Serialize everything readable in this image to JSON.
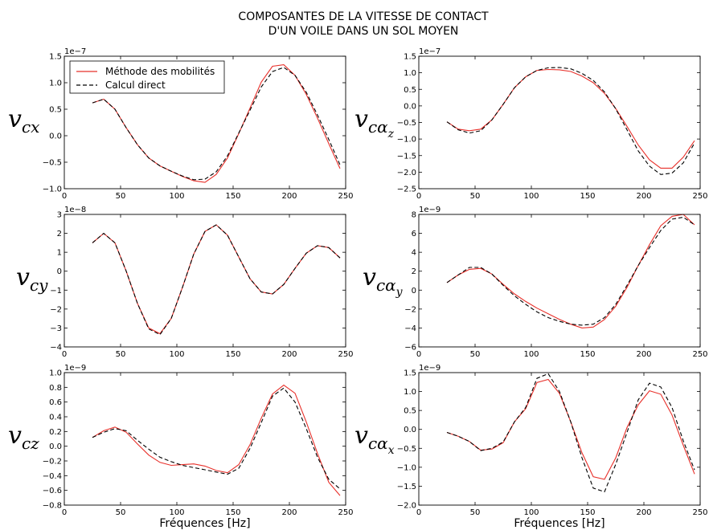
{
  "figure": {
    "title_line1": "COMPOSANTES DE LA VITESSE DE CONTACT",
    "title_line2": "D'UN VOILE DANS UN SOL MOYEN",
    "xlabel": "Fréquences [Hz]",
    "legend": [
      "Méthode des mobilités",
      "Calcul direct"
    ],
    "colors": {
      "mobilites": "#e8302a",
      "direct": "#000000"
    }
  },
  "chart_data": [
    {
      "type": "line",
      "ylabel": "v",
      "ylabel_sub": "cx",
      "ylabel_subsub": "",
      "multiplier": "1e−7",
      "legend_placement": "top-left",
      "xlim": [
        0,
        250
      ],
      "ylim": [
        -1.0,
        1.5
      ],
      "xticks": [
        0,
        50,
        100,
        150,
        200,
        250
      ],
      "xtick_labels": [
        "0",
        "50",
        "100",
        "150",
        "200",
        "250"
      ],
      "yticks": [
        -1.0,
        -0.5,
        0.0,
        0.5,
        1.0,
        1.5
      ],
      "ytick_labels": [
        "−1.0",
        "−0.5",
        "0.0",
        "0.5",
        "1.0",
        "1.5"
      ],
      "x": [
        25,
        35,
        45,
        55,
        65,
        75,
        85,
        95,
        105,
        115,
        125,
        135,
        145,
        155,
        165,
        175,
        185,
        195,
        205,
        215,
        225,
        235,
        245
      ],
      "series": [
        {
          "name": "Méthode des mobilités",
          "values": [
            0.62,
            0.69,
            0.5,
            0.15,
            -0.17,
            -0.42,
            -0.57,
            -0.67,
            -0.77,
            -0.85,
            -0.88,
            -0.73,
            -0.42,
            0.04,
            0.52,
            1.01,
            1.31,
            1.34,
            1.14,
            0.78,
            0.33,
            -0.15,
            -0.62
          ]
        },
        {
          "name": "Calcul direct",
          "values": [
            0.62,
            0.69,
            0.5,
            0.15,
            -0.17,
            -0.42,
            -0.57,
            -0.67,
            -0.76,
            -0.83,
            -0.82,
            -0.68,
            -0.38,
            0.05,
            0.48,
            0.92,
            1.21,
            1.29,
            1.14,
            0.82,
            0.39,
            -0.07,
            -0.55
          ]
        }
      ]
    },
    {
      "type": "line",
      "ylabel": "v",
      "ylabel_sub": "cα",
      "ylabel_subsub": "z",
      "multiplier": "1e−7",
      "xlim": [
        0,
        250
      ],
      "ylim": [
        -2.5,
        1.5
      ],
      "xticks": [
        0,
        50,
        100,
        150,
        200,
        250
      ],
      "xtick_labels": [
        "0",
        "50",
        "100",
        "150",
        "200",
        "250"
      ],
      "yticks": [
        -2.5,
        -2.0,
        -1.5,
        -1.0,
        -0.5,
        0.0,
        0.5,
        1.0,
        1.5
      ],
      "ytick_labels": [
        "−2.5",
        "−2.0",
        "−1.5",
        "−1.0",
        "−0.5",
        "0.0",
        "0.5",
        "1.0",
        "1.5"
      ],
      "x": [
        25,
        35,
        45,
        55,
        65,
        75,
        85,
        95,
        105,
        115,
        125,
        135,
        145,
        155,
        165,
        175,
        185,
        195,
        205,
        215,
        225,
        235,
        245
      ],
      "series": [
        {
          "name": "Méthode des mobilités",
          "values": [
            -0.48,
            -0.7,
            -0.75,
            -0.7,
            -0.42,
            0.05,
            0.55,
            0.88,
            1.07,
            1.1,
            1.09,
            1.04,
            0.9,
            0.7,
            0.38,
            -0.08,
            -0.62,
            -1.18,
            -1.63,
            -1.88,
            -1.88,
            -1.55,
            -1.05
          ]
        },
        {
          "name": "Calcul direct",
          "values": [
            -0.48,
            -0.72,
            -0.82,
            -0.75,
            -0.42,
            0.05,
            0.55,
            0.88,
            1.07,
            1.15,
            1.16,
            1.12,
            0.98,
            0.77,
            0.42,
            -0.09,
            -0.72,
            -1.36,
            -1.82,
            -2.07,
            -2.03,
            -1.72,
            -1.12
          ]
        }
      ]
    },
    {
      "type": "line",
      "ylabel": "v",
      "ylabel_sub": "cy",
      "ylabel_subsub": "",
      "multiplier": "1e−8",
      "xlim": [
        0,
        250
      ],
      "ylim": [
        -4,
        3
      ],
      "xticks": [
        0,
        50,
        100,
        150,
        200,
        250
      ],
      "xtick_labels": [
        "0",
        "50",
        "100",
        "150",
        "200",
        "250"
      ],
      "yticks": [
        -4,
        -3,
        -2,
        -1,
        0,
        1,
        2,
        3
      ],
      "ytick_labels": [
        "−4",
        "−3",
        "−2",
        "−1",
        "0",
        "1",
        "2",
        "3"
      ],
      "x": [
        25,
        35,
        45,
        55,
        65,
        75,
        85,
        95,
        105,
        115,
        125,
        135,
        145,
        155,
        165,
        175,
        185,
        195,
        205,
        215,
        225,
        235,
        245
      ],
      "series": [
        {
          "name": "Méthode des mobilités",
          "values": [
            1.5,
            2.0,
            1.5,
            0.0,
            -1.7,
            -3.0,
            -3.3,
            -2.5,
            -0.85,
            0.9,
            2.1,
            2.45,
            1.9,
            0.75,
            -0.4,
            -1.1,
            -1.2,
            -0.7,
            0.15,
            0.95,
            1.35,
            1.25,
            0.7
          ]
        },
        {
          "name": "Calcul direct",
          "values": [
            1.5,
            2.0,
            1.5,
            0.0,
            -1.7,
            -3.05,
            -3.35,
            -2.5,
            -0.85,
            0.9,
            2.1,
            2.45,
            1.9,
            0.75,
            -0.4,
            -1.1,
            -1.2,
            -0.7,
            0.15,
            0.95,
            1.35,
            1.25,
            0.7
          ]
        }
      ]
    },
    {
      "type": "line",
      "ylabel": "v",
      "ylabel_sub": "cα",
      "ylabel_subsub": "y",
      "multiplier": "1e−9",
      "xlim": [
        0,
        250
      ],
      "ylim": [
        -6,
        8
      ],
      "xticks": [
        0,
        50,
        100,
        150,
        200,
        250
      ],
      "xtick_labels": [
        "0",
        "50",
        "100",
        "150",
        "200",
        "250"
      ],
      "yticks": [
        -6,
        -4,
        -2,
        0,
        2,
        4,
        6,
        8
      ],
      "ytick_labels": [
        "−6",
        "−4",
        "−2",
        "0",
        "2",
        "4",
        "6",
        "8"
      ],
      "x": [
        25,
        35,
        45,
        55,
        65,
        75,
        85,
        95,
        105,
        115,
        125,
        135,
        145,
        155,
        165,
        175,
        185,
        195,
        205,
        215,
        225,
        235,
        245
      ],
      "series": [
        {
          "name": "Méthode des mobilités",
          "values": [
            0.8,
            1.6,
            2.2,
            2.3,
            1.7,
            0.6,
            -0.4,
            -1.2,
            -1.9,
            -2.5,
            -3.1,
            -3.6,
            -4.0,
            -3.9,
            -3.1,
            -1.7,
            0.3,
            2.6,
            4.8,
            6.8,
            7.8,
            8.0,
            6.9
          ]
        },
        {
          "name": "Calcul direct",
          "values": [
            0.8,
            1.6,
            2.4,
            2.4,
            1.7,
            0.5,
            -0.6,
            -1.5,
            -2.3,
            -2.9,
            -3.3,
            -3.6,
            -3.7,
            -3.6,
            -2.9,
            -1.5,
            0.5,
            2.6,
            4.5,
            6.3,
            7.5,
            7.7,
            6.9
          ]
        }
      ]
    },
    {
      "type": "line",
      "ylabel": "v",
      "ylabel_sub": "cz",
      "ylabel_subsub": "",
      "multiplier": "1e−9",
      "xlim": [
        0,
        250
      ],
      "ylim": [
        -0.8,
        1.0
      ],
      "xticks": [
        0,
        50,
        100,
        150,
        200,
        250
      ],
      "xtick_labels": [
        "0",
        "50",
        "100",
        "150",
        "200",
        "250"
      ],
      "yticks": [
        -0.8,
        -0.6,
        -0.4,
        -0.2,
        0.0,
        0.2,
        0.4,
        0.6,
        0.8,
        1.0
      ],
      "ytick_labels": [
        "−0.8",
        "−0.6",
        "−0.4",
        "−0.2",
        "0.0",
        "0.2",
        "0.4",
        "0.6",
        "0.8",
        "1.0"
      ],
      "x": [
        25,
        35,
        45,
        55,
        65,
        75,
        85,
        95,
        105,
        115,
        125,
        135,
        145,
        155,
        165,
        175,
        185,
        195,
        205,
        215,
        225,
        235,
        245
      ],
      "series": [
        {
          "name": "Méthode des mobilités",
          "values": [
            0.12,
            0.21,
            0.26,
            0.19,
            0.03,
            -0.12,
            -0.22,
            -0.26,
            -0.25,
            -0.24,
            -0.27,
            -0.33,
            -0.36,
            -0.25,
            0.02,
            0.38,
            0.71,
            0.83,
            0.72,
            0.33,
            -0.1,
            -0.49,
            -0.67
          ]
        },
        {
          "name": "Calcul direct",
          "values": [
            0.12,
            0.19,
            0.24,
            0.21,
            0.08,
            -0.04,
            -0.15,
            -0.21,
            -0.26,
            -0.29,
            -0.32,
            -0.35,
            -0.38,
            -0.3,
            -0.03,
            0.32,
            0.68,
            0.79,
            0.6,
            0.24,
            -0.15,
            -0.45,
            -0.58
          ]
        }
      ]
    },
    {
      "type": "line",
      "ylabel": "v",
      "ylabel_sub": "cα",
      "ylabel_subsub": "x",
      "multiplier": "1e−9",
      "xlim": [
        0,
        250
      ],
      "ylim": [
        -2.0,
        1.5
      ],
      "xticks": [
        0,
        50,
        100,
        150,
        200,
        250
      ],
      "xtick_labels": [
        "0",
        "50",
        "100",
        "150",
        "200",
        "250"
      ],
      "yticks": [
        -2.0,
        -1.5,
        -1.0,
        -0.5,
        0.0,
        0.5,
        1.0,
        1.5
      ],
      "ytick_labels": [
        "−2.0",
        "−1.5",
        "−1.0",
        "−0.5",
        "0.0",
        "0.5",
        "1.0",
        "1.5"
      ],
      "x": [
        25,
        35,
        45,
        55,
        65,
        75,
        85,
        95,
        105,
        115,
        125,
        135,
        145,
        155,
        165,
        175,
        185,
        195,
        205,
        215,
        225,
        235,
        245
      ],
      "series": [
        {
          "name": "Méthode des mobilités",
          "values": [
            -0.08,
            -0.18,
            -0.32,
            -0.55,
            -0.52,
            -0.35,
            0.2,
            0.55,
            1.24,
            1.32,
            0.95,
            0.2,
            -0.62,
            -1.25,
            -1.32,
            -0.75,
            0.05,
            0.65,
            1.02,
            0.93,
            0.38,
            -0.42,
            -1.18
          ]
        },
        {
          "name": "Calcul direct",
          "values": [
            -0.08,
            -0.18,
            -0.32,
            -0.56,
            -0.5,
            -0.33,
            0.2,
            0.58,
            1.35,
            1.47,
            1.0,
            0.2,
            -0.75,
            -1.55,
            -1.65,
            -0.92,
            -0.08,
            0.78,
            1.22,
            1.12,
            0.58,
            -0.3,
            -1.07
          ]
        }
      ]
    }
  ]
}
